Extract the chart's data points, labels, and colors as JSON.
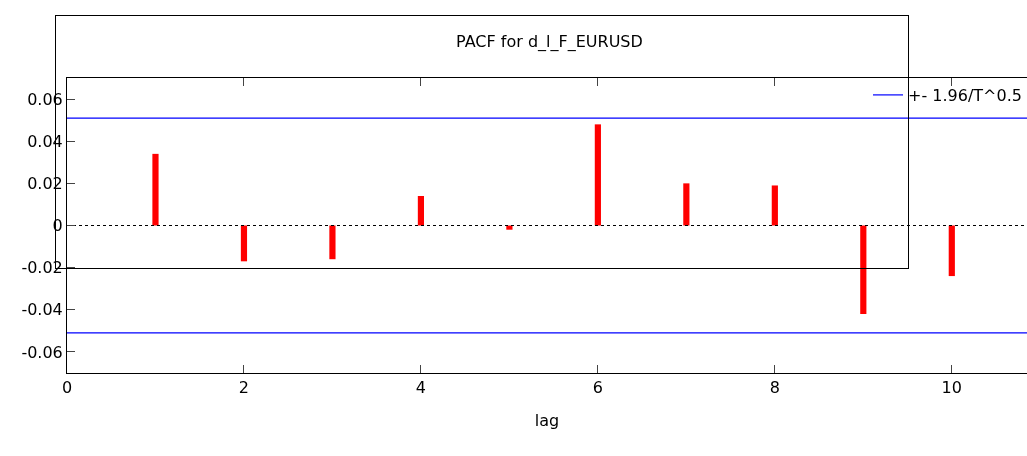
{
  "chart_data": {
    "type": "bar",
    "title": "PACF for d_l_F_EURUSD",
    "xlabel": "lag",
    "x": [
      1,
      2,
      3,
      4,
      5,
      6,
      7,
      8,
      9,
      10
    ],
    "values": [
      0.034,
      -0.017,
      -0.016,
      0.014,
      -0.002,
      0.048,
      0.02,
      0.019,
      -0.042,
      -0.024
    ],
    "color": "#ff0000",
    "xlim": [
      0,
      10.85
    ],
    "xticks": [
      0,
      2,
      4,
      6,
      8,
      10
    ],
    "ylim": [
      -0.07,
      0.07
    ],
    "yticks": [
      -0.06,
      -0.04,
      -0.02,
      0,
      0.02,
      0.04,
      0.06
    ],
    "ref_lines": [
      {
        "axis": "y",
        "value": 0.051,
        "label": "+- 1.96/T^0.5",
        "color": "#0000ff",
        "line_style": "solid"
      },
      {
        "axis": "y",
        "value": -0.051,
        "color": "#0000ff",
        "line_style": "solid"
      },
      {
        "axis": "y",
        "value": 0,
        "color": "#000000",
        "line_style": "dotted"
      }
    ],
    "grid": false,
    "legend": "top right"
  }
}
